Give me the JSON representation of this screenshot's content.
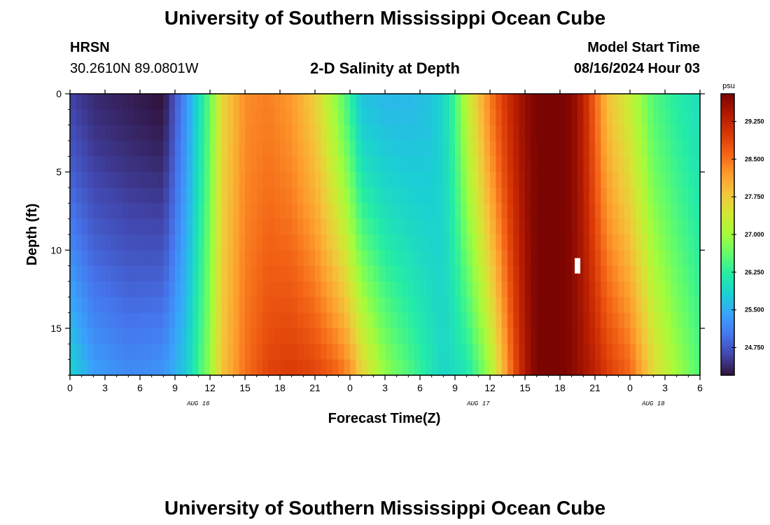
{
  "header": {
    "title": "University of Southern Mississippi Ocean Cube",
    "footer_title": "University of Southern Mississippi Ocean Cube"
  },
  "station": {
    "name": "HRSN",
    "coords": "30.2610N  89.0801W"
  },
  "model": {
    "label": "Model Start Time",
    "start": "08/16/2024 Hour 03"
  },
  "chart_data": {
    "type": "heatmap",
    "title": "2-D Salinity at Depth",
    "xlabel": "Forecast Time(Z)",
    "ylabel": "Depth (ft)",
    "x_ticks": [
      "0",
      "3",
      "6",
      "9",
      "12",
      "15",
      "18",
      "21",
      "0",
      "3",
      "6",
      "9",
      "12",
      "15",
      "18",
      "21",
      "0",
      "3",
      "6"
    ],
    "date_labels": [
      {
        "text": "AUG 16",
        "hour": 11
      },
      {
        "text": "AUG 17",
        "hour": 35
      },
      {
        "text": "AUG 18",
        "hour": 50
      }
    ],
    "x_range_hours": [
      0,
      54
    ],
    "y_ticks": [
      "0",
      "5",
      "10",
      "15"
    ],
    "y_range_ft": [
      0,
      18
    ],
    "colorbar": {
      "unit": "psu",
      "min": 24.2,
      "max": 29.8,
      "tick_labels": [
        "24.750",
        "25.500",
        "26.250",
        "27.000",
        "27.750",
        "28.500",
        "29.250"
      ],
      "ticks": [
        24.75,
        25.5,
        26.25,
        27.0,
        27.75,
        28.5,
        29.25
      ]
    },
    "colormap": [
      "#30123b",
      "#4145ab",
      "#4675ed",
      "#39a2fc",
      "#1bcfd4",
      "#24eca6",
      "#61fc6c",
      "#a4fc3b",
      "#d1e834",
      "#f3c63a",
      "#fe9b2d",
      "#f36315",
      "#d93806",
      "#b11901",
      "#7a0402"
    ],
    "salinity_by_hour": {
      "hours": [
        0,
        2,
        5,
        8,
        10,
        12,
        13,
        15,
        17,
        19,
        21,
        23,
        24,
        25,
        27,
        29,
        31,
        32,
        33,
        34,
        35,
        36,
        37,
        38,
        39,
        40,
        42,
        43,
        44,
        45,
        46,
        48,
        49,
        50,
        52,
        54
      ],
      "surface_psu": [
        24.6,
        24.4,
        24.3,
        24.2,
        25.3,
        26.6,
        27.6,
        28.3,
        28.4,
        28.2,
        27.7,
        26.8,
        26.3,
        25.7,
        25.6,
        25.6,
        25.7,
        25.9,
        26.4,
        27.2,
        27.8,
        28.4,
        28.9,
        29.3,
        29.6,
        29.8,
        29.8,
        29.7,
        29.3,
        28.6,
        27.9,
        27.3,
        26.9,
        26.5,
        26.2,
        26.0
      ],
      "bottom_psu": [
        25.9,
        25.4,
        25.2,
        25.3,
        25.8,
        26.9,
        27.8,
        28.5,
        28.9,
        29.0,
        28.9,
        28.6,
        28.3,
        27.7,
        26.9,
        26.5,
        26.1,
        25.9,
        26.0,
        26.1,
        26.5,
        27.0,
        27.8,
        28.7,
        29.4,
        29.8,
        29.8,
        29.7,
        29.5,
        29.3,
        29.0,
        28.6,
        28.1,
        27.6,
        27.0,
        26.5
      ]
    },
    "missing_cell": {
      "hour": 43.5,
      "depth_ft": 11
    }
  }
}
